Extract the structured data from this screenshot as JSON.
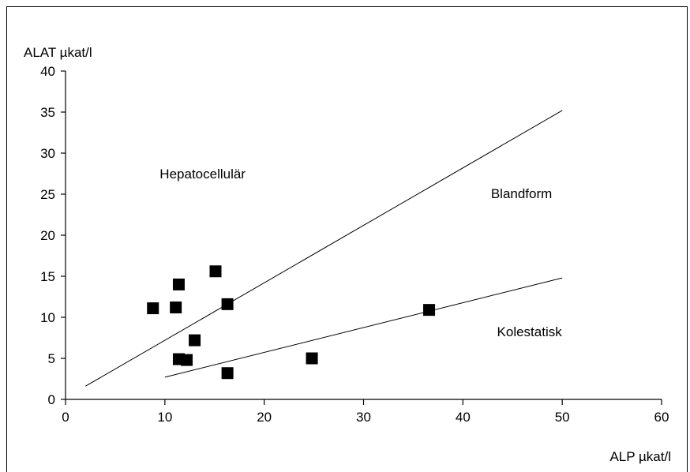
{
  "chart_data": {
    "type": "scatter",
    "xlabel": "ALP µkat/l",
    "ylabel": "ALAT µkat/l",
    "xlim": [
      0,
      60
    ],
    "ylim": [
      0,
      40
    ],
    "x_ticks": [
      0,
      10,
      20,
      30,
      40,
      50,
      60
    ],
    "y_ticks": [
      0,
      5,
      10,
      15,
      20,
      25,
      30,
      35,
      40
    ],
    "x_tick_labels": [
      "0",
      "10",
      "20",
      "30",
      "40",
      "50",
      "60"
    ],
    "y_tick_labels": [
      "0",
      "5",
      "10",
      "15",
      "20",
      "25",
      "30",
      "35",
      "40"
    ],
    "grid": false,
    "points": [
      {
        "x": 8.8,
        "y": 11.1
      },
      {
        "x": 11.1,
        "y": 11.2
      },
      {
        "x": 11.4,
        "y": 14.0
      },
      {
        "x": 15.1,
        "y": 15.6
      },
      {
        "x": 16.3,
        "y": 11.6
      },
      {
        "x": 13.0,
        "y": 7.2
      },
      {
        "x": 11.4,
        "y": 4.9
      },
      {
        "x": 12.2,
        "y": 4.8
      },
      {
        "x": 16.3,
        "y": 3.2
      },
      {
        "x": 24.8,
        "y": 5.0
      },
      {
        "x": 36.6,
        "y": 10.9
      }
    ],
    "reference_lines": [
      {
        "x1": 2.0,
        "y1": 1.6,
        "x2": 50.0,
        "y2": 35.2
      },
      {
        "x1": 10.0,
        "y1": 2.7,
        "x2": 50.0,
        "y2": 14.8
      }
    ],
    "annotations": [
      {
        "text": "Hepatocellulär",
        "x": 13.8,
        "y": 26.9
      },
      {
        "text": "Blandform",
        "x": 45.9,
        "y": 24.5
      },
      {
        "text": "Kolestatisk",
        "x": 46.7,
        "y": 7.7
      }
    ]
  }
}
